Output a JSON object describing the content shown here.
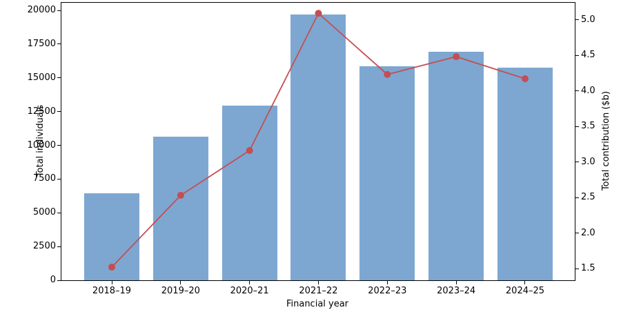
{
  "chart_data": {
    "type": "combo_bar_line",
    "title": "",
    "categories": [
      "2018–19",
      "2019–20",
      "2020–21",
      "2021–22",
      "2022–23",
      "2023–24",
      "2024–25"
    ],
    "xlabel": "Financial year",
    "left_axis": {
      "label": "Total individuals",
      "ticks": [
        0,
        2500,
        5000,
        7500,
        10000,
        12500,
        15000,
        17500,
        20000
      ],
      "lim": [
        0,
        20614
      ]
    },
    "right_axis": {
      "label": "Total contribution ($b)",
      "ticks": [
        1.5,
        2.0,
        2.5,
        3.0,
        3.5,
        4.0,
        4.5,
        5.0
      ],
      "lim": [
        1.335,
        5.248
      ]
    },
    "series": [
      {
        "name": "Total individuals",
        "type": "bar",
        "axis": "left",
        "color": "#7da7d1",
        "values": [
          6450,
          10650,
          12950,
          19700,
          15850,
          16950,
          15750
        ]
      },
      {
        "name": "Total contribution ($b)",
        "type": "line",
        "axis": "right",
        "color": "#c44e52",
        "marker": "circle",
        "values": [
          1.52,
          2.53,
          3.16,
          5.09,
          4.23,
          4.48,
          4.17
        ]
      }
    ],
    "grid": false,
    "legend": false
  }
}
